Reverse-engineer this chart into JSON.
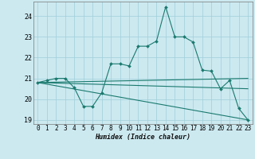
{
  "xlabel": "Humidex (Indice chaleur)",
  "bg_color": "#cce9f0",
  "grid_color": "#9fcfda",
  "line_color": "#1a7a6e",
  "xlim": [
    -0.5,
    23.5
  ],
  "ylim": [
    18.8,
    24.7
  ],
  "yticks": [
    19,
    20,
    21,
    22,
    23,
    24
  ],
  "xticks": [
    0,
    1,
    2,
    3,
    4,
    5,
    6,
    7,
    8,
    9,
    10,
    11,
    12,
    13,
    14,
    15,
    16,
    17,
    18,
    19,
    20,
    21,
    22,
    23
  ],
  "series": [
    {
      "x": [
        0,
        1,
        2,
        3,
        4,
        5,
        6,
        7,
        8,
        9,
        10,
        11,
        12,
        13,
        14,
        15,
        16,
        17,
        18,
        19,
        20,
        21,
        22,
        23
      ],
      "y": [
        20.8,
        20.9,
        21.0,
        21.0,
        20.55,
        19.65,
        19.65,
        20.3,
        21.7,
        21.7,
        21.6,
        22.55,
        22.55,
        22.8,
        24.45,
        23.0,
        23.0,
        22.75,
        21.4,
        21.35,
        20.5,
        20.9,
        19.55,
        19.0
      ],
      "marker": true
    },
    {
      "x": [
        0,
        23
      ],
      "y": [
        20.8,
        21.0
      ],
      "marker": false
    },
    {
      "x": [
        0,
        23
      ],
      "y": [
        20.8,
        19.0
      ],
      "marker": false
    },
    {
      "x": [
        0,
        23
      ],
      "y": [
        20.8,
        20.5
      ],
      "marker": false
    }
  ],
  "xlabel_fontsize": 6.0,
  "tick_fontsize": 5.5
}
